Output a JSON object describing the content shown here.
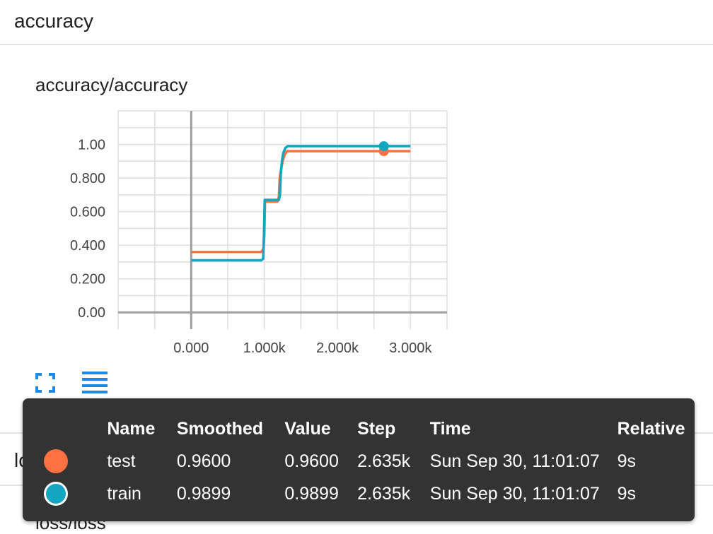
{
  "section": {
    "title": "accuracy"
  },
  "card": {
    "title": "accuracy/accuracy"
  },
  "chart_data": {
    "type": "line",
    "xlim": [
      -1000,
      3500
    ],
    "ylim": [
      -0.1,
      1.2
    ],
    "x_ticks": [
      0,
      1000,
      2000,
      3000
    ],
    "x_tick_labels": [
      "0.000",
      "1.000k",
      "2.000k",
      "3.000k"
    ],
    "y_ticks": [
      0,
      0.2,
      0.4,
      0.6,
      0.8,
      1.0
    ],
    "y_tick_labels": [
      "0.00",
      "0.200",
      "0.400",
      "0.600",
      "0.800",
      "1.00"
    ],
    "grid": true,
    "series": [
      {
        "name": "test",
        "color": "#ff7043",
        "x": [
          0,
          960,
          990,
          1000,
          1010,
          1180,
          1200,
          1210,
          1230,
          1250,
          1280,
          1310,
          1350,
          3000
        ],
        "y": [
          0.36,
          0.36,
          0.38,
          0.46,
          0.66,
          0.66,
          0.69,
          0.8,
          0.85,
          0.9,
          0.94,
          0.96,
          0.96,
          0.96
        ],
        "highlight": {
          "x": 2635,
          "y": 0.96
        }
      },
      {
        "name": "train",
        "color": "#12a6c0",
        "x": [
          0,
          960,
          985,
          995,
          1005,
          1200,
          1215,
          1225,
          1240,
          1260,
          1290,
          1320,
          1360,
          3000
        ],
        "y": [
          0.31,
          0.31,
          0.32,
          0.45,
          0.67,
          0.67,
          0.7,
          0.82,
          0.9,
          0.95,
          0.98,
          0.99,
          0.99,
          0.99
        ],
        "highlight": {
          "x": 2635,
          "y": 0.9899
        }
      }
    ]
  },
  "toolbar": {
    "expand_icon": "fullscreen-icon",
    "data_icon": "list-icon"
  },
  "tooltip": {
    "headers": [
      "Name",
      "Smoothed",
      "Value",
      "Step",
      "Time",
      "Relative"
    ],
    "rows": [
      {
        "name": "test",
        "color": "#ff7043",
        "smoothed": "0.9600",
        "value": "0.9600",
        "step": "2.635k",
        "time": "Sun Sep 30, 11:01:07",
        "relative": "9s"
      },
      {
        "name": "train",
        "color": "#12a6c0",
        "smoothed": "0.9899",
        "value": "0.9899",
        "step": "2.635k",
        "time": "Sun Sep 30, 11:01:07",
        "relative": "9s"
      }
    ]
  },
  "loss_section": {
    "title": "loss",
    "card_title": "loss/loss"
  }
}
